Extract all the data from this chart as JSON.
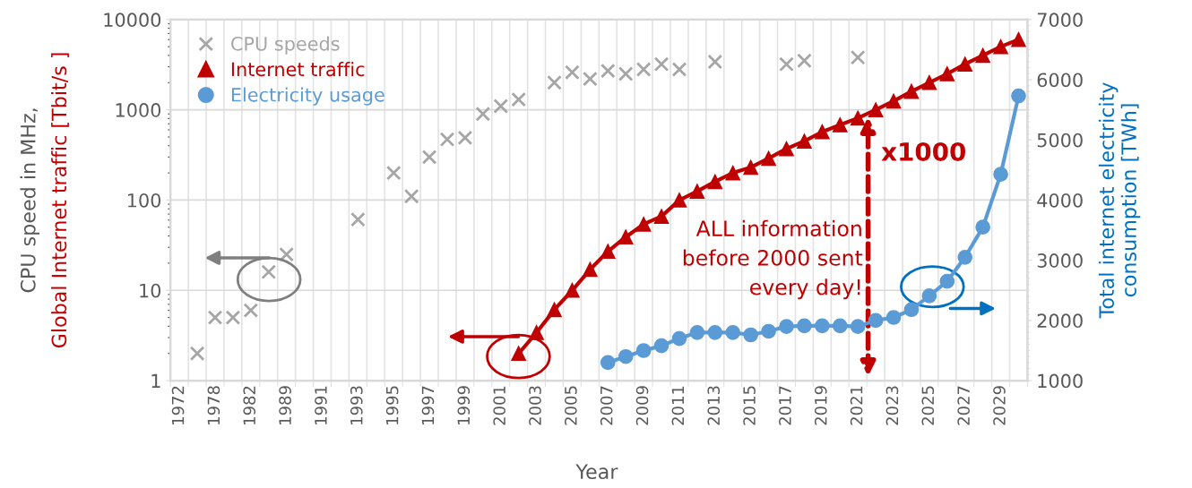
{
  "chart_data": {
    "type": "line",
    "xlabel": "Year",
    "ylabel": "CPU speed in MHz,\nGlobal Internet traffic [Tbit/s ]",
    "y2label": "Total internet electricity\nconsumption [TWh]",
    "categories": [
      "1972",
      null,
      "1978",
      null,
      "1982",
      null,
      "1989",
      null,
      "1991",
      null,
      "1993",
      null,
      "1995",
      null,
      "1997",
      null,
      "1999",
      null,
      "2001",
      null,
      "2003",
      null,
      "2005",
      null,
      "2007",
      null,
      "2009",
      null,
      "2011",
      null,
      "2013",
      null,
      "2015",
      null,
      "2017",
      null,
      "2019",
      null,
      "2021",
      null,
      "2023",
      null,
      "2025",
      null,
      "2027",
      null,
      "2029",
      null
    ],
    "series": [
      {
        "name": "CPU speeds",
        "type": "scatter",
        "marker": "cross",
        "color": "#a6a6a6",
        "values": [
          null,
          2,
          5,
          5,
          6,
          16,
          25,
          null,
          null,
          null,
          61,
          null,
          200,
          110,
          300,
          470,
          490,
          900,
          1100,
          1300,
          null,
          2000,
          2600,
          2200,
          2700,
          2500,
          2800,
          3200,
          2800,
          null,
          3400,
          null,
          null,
          null,
          3200,
          3500,
          null,
          null,
          3800,
          null,
          null,
          null,
          null,
          null,
          null,
          null,
          null,
          null
        ]
      },
      {
        "name": "Internet traffic",
        "marker": "triangle",
        "color": "#c00000",
        "values": [
          null,
          null,
          null,
          null,
          null,
          null,
          null,
          null,
          null,
          null,
          null,
          null,
          null,
          null,
          null,
          null,
          null,
          null,
          null,
          2,
          3.4,
          6.1,
          10,
          17,
          27,
          39,
          54,
          66,
          100,
          125,
          160,
          200,
          230,
          290,
          370,
          450,
          570,
          680,
          810,
          1000,
          1250,
          1600,
          2000,
          2500,
          3200,
          4000,
          5000,
          6000
        ]
      },
      {
        "name": "Electricity usage",
        "marker": "circle",
        "axis": "y2",
        "color": "#5b9bd5",
        "values": [
          null,
          null,
          null,
          null,
          null,
          null,
          null,
          null,
          null,
          null,
          null,
          null,
          null,
          null,
          null,
          null,
          null,
          null,
          null,
          null,
          null,
          null,
          null,
          null,
          1300,
          1400,
          1500,
          1580,
          1700,
          1800,
          1800,
          1800,
          1760,
          1820,
          1900,
          1910,
          1910,
          1910,
          1900,
          2000,
          2050,
          2180,
          2410,
          2650,
          3050,
          3550,
          4430,
          5730
        ]
      }
    ],
    "log": true,
    "ylim": [
      1,
      10000
    ],
    "yticks": [
      1,
      10,
      100,
      1000,
      10000
    ],
    "y2lim": [
      1000,
      7000
    ],
    "y2ticks": [
      1000,
      2000,
      3000,
      4000,
      5000,
      6000,
      7000
    ],
    "grid": true,
    "legend": "top left",
    "annotations": [
      "x1000",
      "ALL information\nbefore 2000 sent\nevery day!"
    ]
  }
}
